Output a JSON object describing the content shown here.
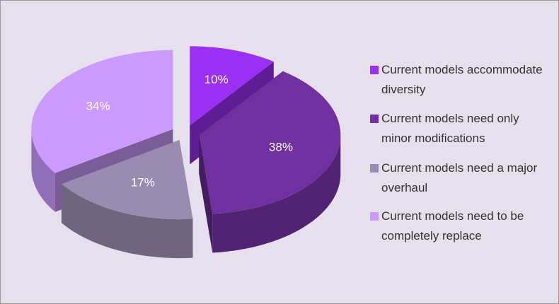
{
  "chart_data": {
    "type": "pie",
    "categories": [
      "Current models accommodate diversity",
      "Current models need only minor modifications",
      "Current models need a major overhaul",
      "Current models need to be completely replace"
    ],
    "values": [
      10,
      38,
      17,
      34
    ],
    "value_labels": [
      "10%",
      "38%",
      "17%",
      "34%"
    ],
    "colors": [
      "#9b30f5",
      "#7030a0",
      "#9a8cb0",
      "#cc99ff"
    ],
    "legend": "right"
  }
}
